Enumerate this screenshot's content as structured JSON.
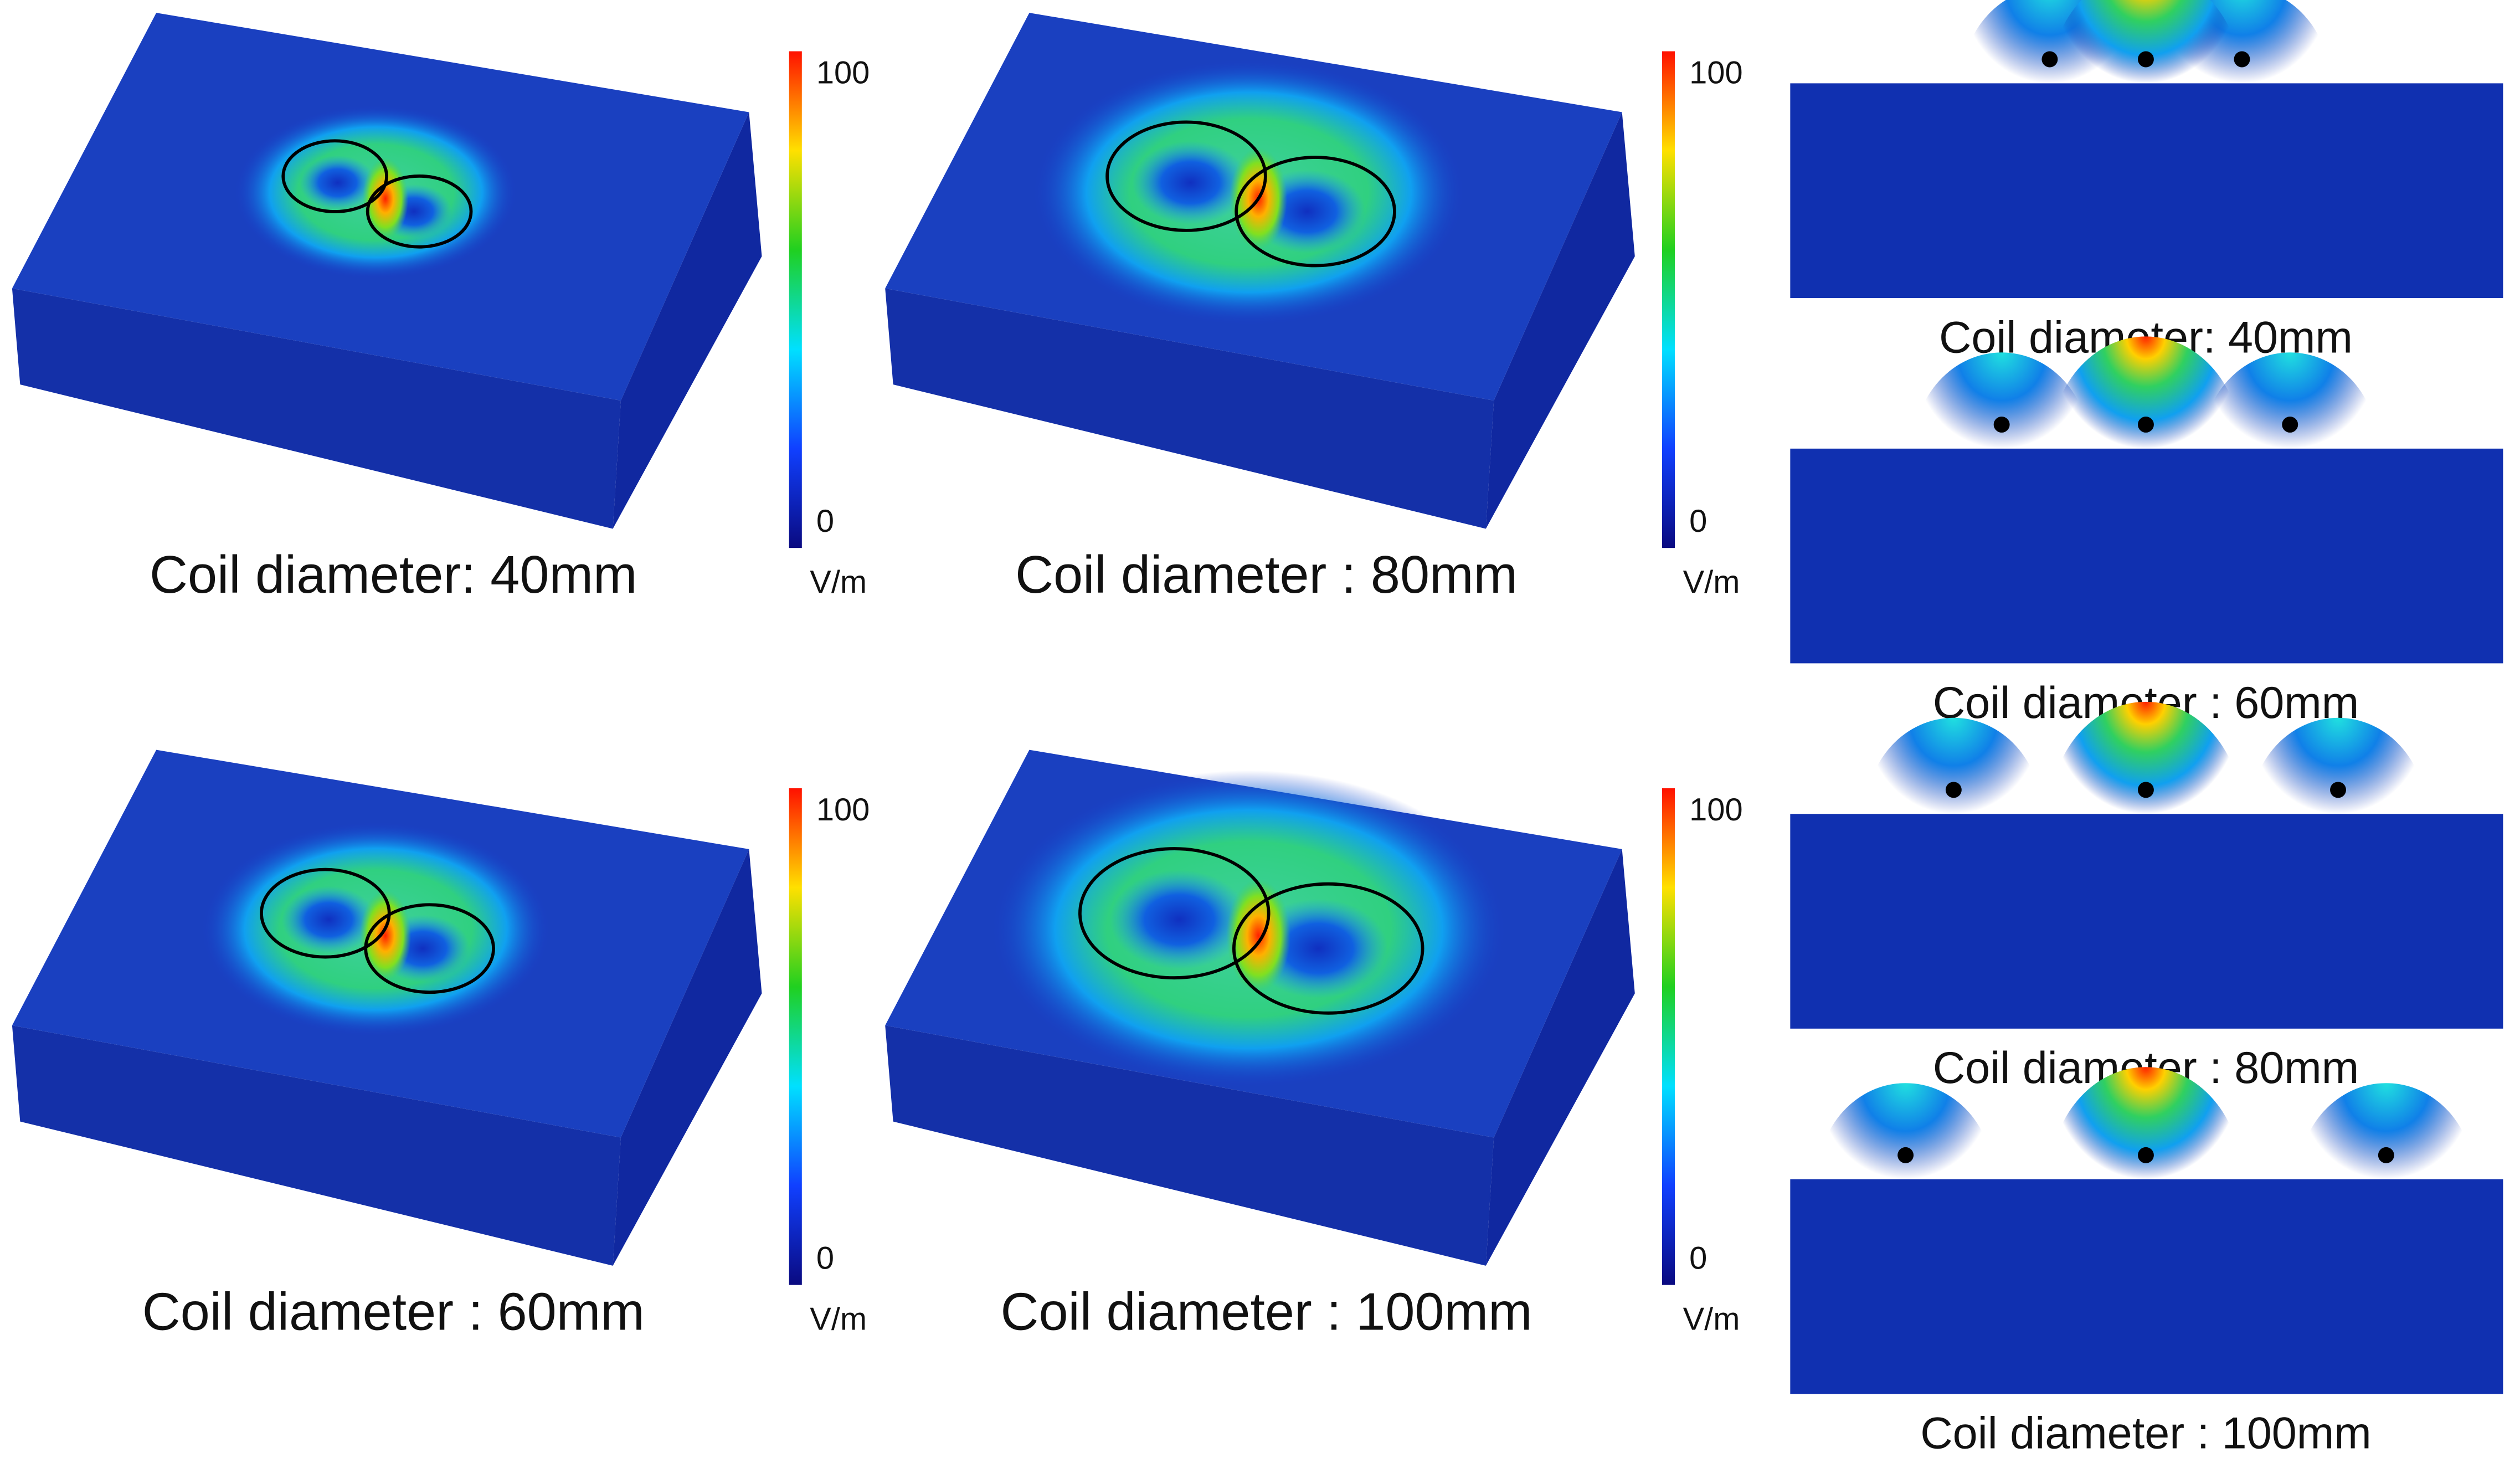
{
  "panels_3d": [
    {
      "caption": "Coil diameter: 40mm",
      "colorbar": {
        "max": "100",
        "min": "0",
        "unit": "V/m"
      }
    },
    {
      "caption": "Coil diameter : 80mm",
      "colorbar": {
        "max": "100",
        "min": "0",
        "unit": "V/m"
      }
    },
    {
      "caption": "Coil diameter : 60mm",
      "colorbar": {
        "max": "100",
        "min": "0",
        "unit": "V/m"
      }
    },
    {
      "caption": "Coil diameter : 100mm",
      "colorbar": {
        "max": "100",
        "min": "0",
        "unit": "V/m"
      }
    }
  ],
  "cross_sections": [
    {
      "caption": "Coil diameter: 40mm"
    },
    {
      "caption": "Coil diameter : 60mm"
    },
    {
      "caption": "Coil diameter : 80mm"
    },
    {
      "caption": "Coil diameter : 100mm"
    }
  ]
}
